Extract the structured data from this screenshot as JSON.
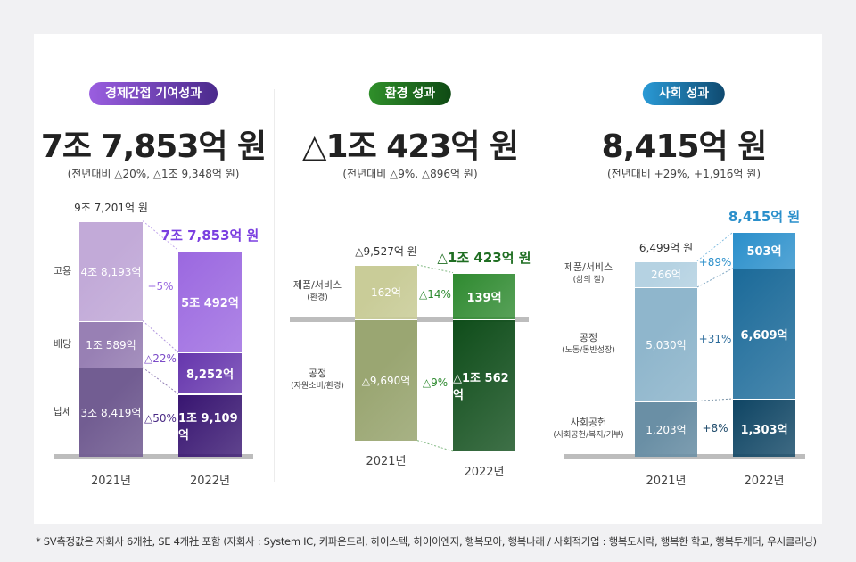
{
  "panels": [
    {
      "pill": "경제간접 기여성과",
      "pill_colors": [
        "#9a5ee0",
        "#4b2a8c"
      ],
      "headline": "7조 7,853억 원",
      "sub": "(전년대비 △20%, △1조 9,348억 원)",
      "total_2021": "9조 7,201억 원",
      "total_2022": "7조 7,853억 원",
      "total_2022_color": "#7b3fe0",
      "years": [
        "2021년",
        "2022년"
      ],
      "segments": [
        {
          "label": "고용",
          "sublabel": "",
          "v2021": 48193,
          "v2022": 50492,
          "text2021": "4조 8,193억",
          "text2022": "5조 492억",
          "change": "+5%",
          "color2021": "#c2aad8",
          "color2022": "#9b68e0",
          "pct_color": "#9a6ae0"
        },
        {
          "label": "배당",
          "sublabel": "",
          "v2021": 10589,
          "v2022": 8252,
          "text2021": "1조 589억",
          "text2022": "8,252억",
          "change": "△22%",
          "color2021": "#9880b4",
          "color2022": "#6636ad",
          "pct_color": "#7c4cc8"
        },
        {
          "label": "납세",
          "sublabel": "",
          "v2021": 38419,
          "v2022": 19109,
          "text2021": "3조 8,419억",
          "text2022": "1조 9,109억",
          "change": "△50%",
          "color2021": "#725d92",
          "color2022": "#381571",
          "pct_color": "#4a2a85"
        }
      ]
    },
    {
      "pill": "환경 성과",
      "pill_colors": [
        "#2f8f2a",
        "#0f4a14"
      ],
      "headline": "△1조 423억 원",
      "sub": "(전년대비 △9%, △896억 원)",
      "total_2021": "△9,527억 원",
      "total_2022": "△1조 423억 원",
      "total_2022_color": "#1f6e22",
      "years": [
        "2021년",
        "2022년"
      ],
      "segments": [
        {
          "label": "제품/서비스",
          "sublabel": "(환경)",
          "v2021": 162,
          "v2022": 139,
          "text2021": "162억",
          "text2022": "139억",
          "change": "△14%",
          "color2021": "#c9cc98",
          "color2022": "#2f8a30",
          "pct_color": "#2e8a30"
        },
        {
          "label": "공정",
          "sublabel": "(자원소비/환경)",
          "v2021": -9690,
          "v2022": -10562,
          "text2021": "△9,690억",
          "text2022": "△1조 562억",
          "change": "△9%",
          "color2021": "#9aa672",
          "color2022": "#0f4d1a",
          "pct_color": "#2e8a30"
        }
      ]
    },
    {
      "pill": "사회 성과",
      "pill_colors": [
        "#2a9ad6",
        "#0f4a70"
      ],
      "headline": "8,415억 원",
      "sub": "(전년대비 +29%, +1,916억 원)",
      "total_2021": "6,499억 원",
      "total_2022": "8,415억 원",
      "total_2022_color": "#2a8fcb",
      "years": [
        "2021년",
        "2022년"
      ],
      "segments": [
        {
          "label": "제품/서비스",
          "sublabel": "(삶의 질)",
          "v2021": 266,
          "v2022": 503,
          "text2021": "266억",
          "text2022": "503억",
          "change": "+89%",
          "color2021": "#b5d2e2",
          "color2022": "#2a8fcb",
          "pct_color": "#2a8fcb"
        },
        {
          "label": "공정",
          "sublabel": "(노동/동반성장)",
          "v2021": 5030,
          "v2022": 6609,
          "text2021": "5,030억",
          "text2022": "6,609억",
          "change": "+31%",
          "color2021": "#8fb6cc",
          "color2022": "#1b6a99",
          "pct_color": "#2a6a9a"
        },
        {
          "label": "사회공헌",
          "sublabel": "(사회공헌/복지/기부)",
          "v2021": 1203,
          "v2022": 1303,
          "text2021": "1,203억",
          "text2022": "1,303억",
          "change": "+8%",
          "color2021": "#6a8fa5",
          "color2022": "#0f4564",
          "pct_color": "#1e4a6a"
        }
      ]
    }
  ],
  "chart_data": [
    {
      "type": "bar",
      "stacked": true,
      "categories": [
        "2021년",
        "2022년"
      ],
      "unit": "억 원",
      "series": [
        {
          "name": "고용",
          "values": [
            48193,
            50492
          ]
        },
        {
          "name": "배당",
          "values": [
            10589,
            8252
          ]
        },
        {
          "name": "납세",
          "values": [
            38419,
            19109
          ]
        }
      ],
      "totals": [
        97201,
        77853
      ]
    },
    {
      "type": "bar",
      "stacked": true,
      "categories": [
        "2021년",
        "2022년"
      ],
      "unit": "억 원",
      "series": [
        {
          "name": "제품/서비스 (환경)",
          "values": [
            162,
            139
          ]
        },
        {
          "name": "공정 (자원소비/환경)",
          "values": [
            -9690,
            -10562
          ]
        }
      ],
      "totals": [
        -9527,
        -10423
      ]
    },
    {
      "type": "bar",
      "stacked": true,
      "categories": [
        "2021년",
        "2022년"
      ],
      "unit": "억 원",
      "series": [
        {
          "name": "제품/서비스 (삶의 질)",
          "values": [
            266,
            503
          ]
        },
        {
          "name": "공정 (노동/동반성장)",
          "values": [
            5030,
            6609
          ]
        },
        {
          "name": "사회공헌 (사회공헌/복지/기부)",
          "values": [
            1203,
            1303
          ]
        }
      ],
      "totals": [
        6499,
        8415
      ]
    }
  ],
  "footnote": "* SV측정값은 자회사 6개社, SE 4개社 포함 (자회사 : System IC, 키파운드리, 하이스텍, 하이이엔지, 행복모아, 행복나래 / 사회적기업 : 행복도시락, 행복한 학교, 행복투게더, 우시클리닝)"
}
